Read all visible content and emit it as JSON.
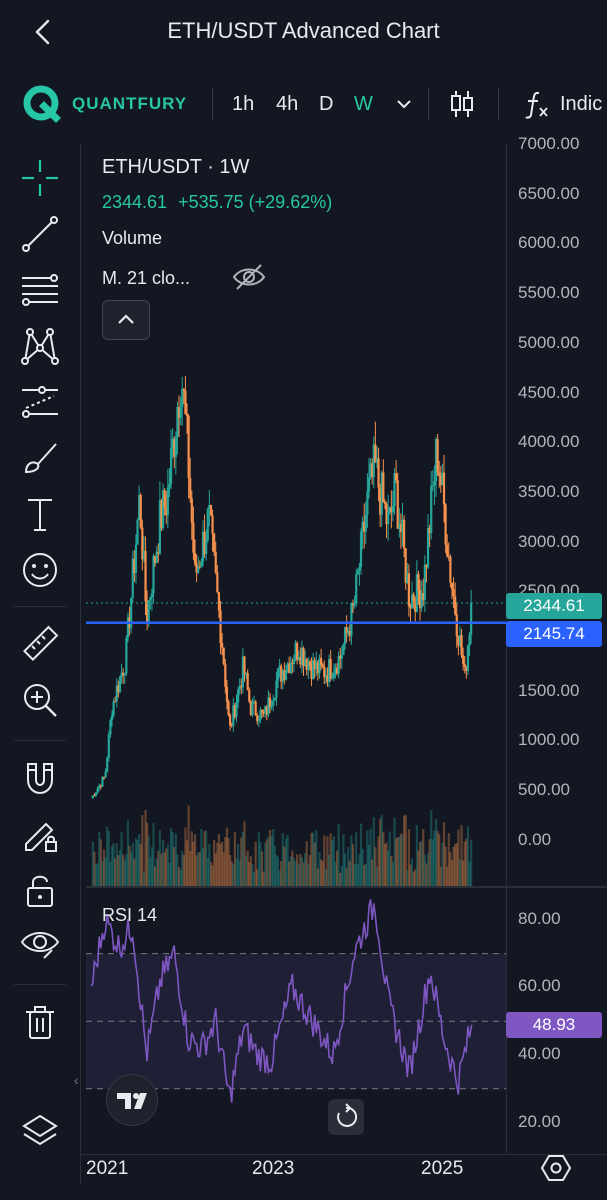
{
  "header": {
    "title": "ETH/USDT Advanced Chart"
  },
  "toolbar": {
    "brand": "QUANTFURY",
    "timeframes": [
      {
        "label": "1h",
        "active": false
      },
      {
        "label": "4h",
        "active": false
      },
      {
        "label": "D",
        "active": false
      },
      {
        "label": "W",
        "active": true
      }
    ],
    "indicators_label": "Indic"
  },
  "legend": {
    "symbol": "ETH/USDT · 1W",
    "price": "2344.61",
    "change": "+535.75 (+29.62%)",
    "volume": "Volume",
    "ma": "M. 21 clo..."
  },
  "price_axis": [
    "7000.00",
    "6500.00",
    "6000.00",
    "5500.00",
    "5000.00",
    "4500.00",
    "4000.00",
    "3500.00",
    "3000.00",
    "2500.00",
    "2000.00",
    "1500.00",
    "1000.00",
    "500.00",
    "0.00"
  ],
  "tags": {
    "last_price": "2344.61",
    "h_line": "2145.74",
    "rsi_value": "48.93"
  },
  "rsi": {
    "title": "RSI 14",
    "axis": [
      "80.00",
      "60.00",
      "40.00",
      "20.00"
    ]
  },
  "time_axis": [
    "2021",
    "2023",
    "2025"
  ],
  "colors": {
    "accent": "#26c6a7",
    "up": "#26a69a",
    "down": "#f7914d",
    "line": "#2962ff",
    "rsi": "#7e57c2",
    "bg": "#131722"
  },
  "chart_data": {
    "type": "candlestick",
    "symbol": "ETH/USDT",
    "interval": "1W",
    "x_range": [
      "2020-10",
      "2025-04"
    ],
    "y_range": [
      0,
      7000
    ],
    "close_series": [
      [
        "2020-10",
        380
      ],
      [
        "2020-12",
        600
      ],
      [
        "2021-01",
        1300
      ],
      [
        "2021-03",
        1800
      ],
      [
        "2021-05",
        3400
      ],
      [
        "2021-06",
        2200
      ],
      [
        "2021-08",
        3200
      ],
      [
        "2021-09",
        3400
      ],
      [
        "2021-11",
        4700
      ],
      [
        "2021-12",
        3800
      ],
      [
        "2022-01",
        2600
      ],
      [
        "2022-03",
        3200
      ],
      [
        "2022-05",
        1900
      ],
      [
        "2022-06",
        1050
      ],
      [
        "2022-08",
        1700
      ],
      [
        "2022-09",
        1300
      ],
      [
        "2022-11",
        1200
      ],
      [
        "2023-01",
        1600
      ],
      [
        "2023-04",
        1900
      ],
      [
        "2023-06",
        1700
      ],
      [
        "2023-08",
        1650
      ],
      [
        "2023-10",
        1800
      ],
      [
        "2023-12",
        2300
      ],
      [
        "2024-02",
        3400
      ],
      [
        "2024-03",
        3700
      ],
      [
        "2024-05",
        3100
      ],
      [
        "2024-06",
        3500
      ],
      [
        "2024-08",
        2400
      ],
      [
        "2024-10",
        2500
      ],
      [
        "2024-12",
        3900
      ],
      [
        "2025-01",
        3300
      ],
      [
        "2025-02",
        2600
      ],
      [
        "2025-04",
        1600
      ],
      [
        "2025-05",
        2344.61
      ]
    ],
    "horizontal_line": 2145.74,
    "last_price": 2344.61,
    "rsi": {
      "period": 14,
      "levels": [
        70,
        50,
        30
      ],
      "range": [
        20,
        85
      ],
      "values": [
        [
          "2020-10",
          60
        ],
        [
          "2020-12",
          80
        ],
        [
          "2021-02",
          72
        ],
        [
          "2021-04",
          78
        ],
        [
          "2021-06",
          40
        ],
        [
          "2021-08",
          62
        ],
        [
          "2021-10",
          70
        ],
        [
          "2021-12",
          45
        ],
        [
          "2022-02",
          42
        ],
        [
          "2022-04",
          50
        ],
        [
          "2022-06",
          27
        ],
        [
          "2022-08",
          48
        ],
        [
          "2022-10",
          40
        ],
        [
          "2022-12",
          38
        ],
        [
          "2023-03",
          60
        ],
        [
          "2023-06",
          50
        ],
        [
          "2023-09",
          40
        ],
        [
          "2023-12",
          70
        ],
        [
          "2024-03",
          85
        ],
        [
          "2024-05",
          55
        ],
        [
          "2024-08",
          35
        ],
        [
          "2024-11",
          65
        ],
        [
          "2025-01",
          45
        ],
        [
          "2025-03",
          32
        ],
        [
          "2025-05",
          48.93
        ]
      ]
    }
  }
}
